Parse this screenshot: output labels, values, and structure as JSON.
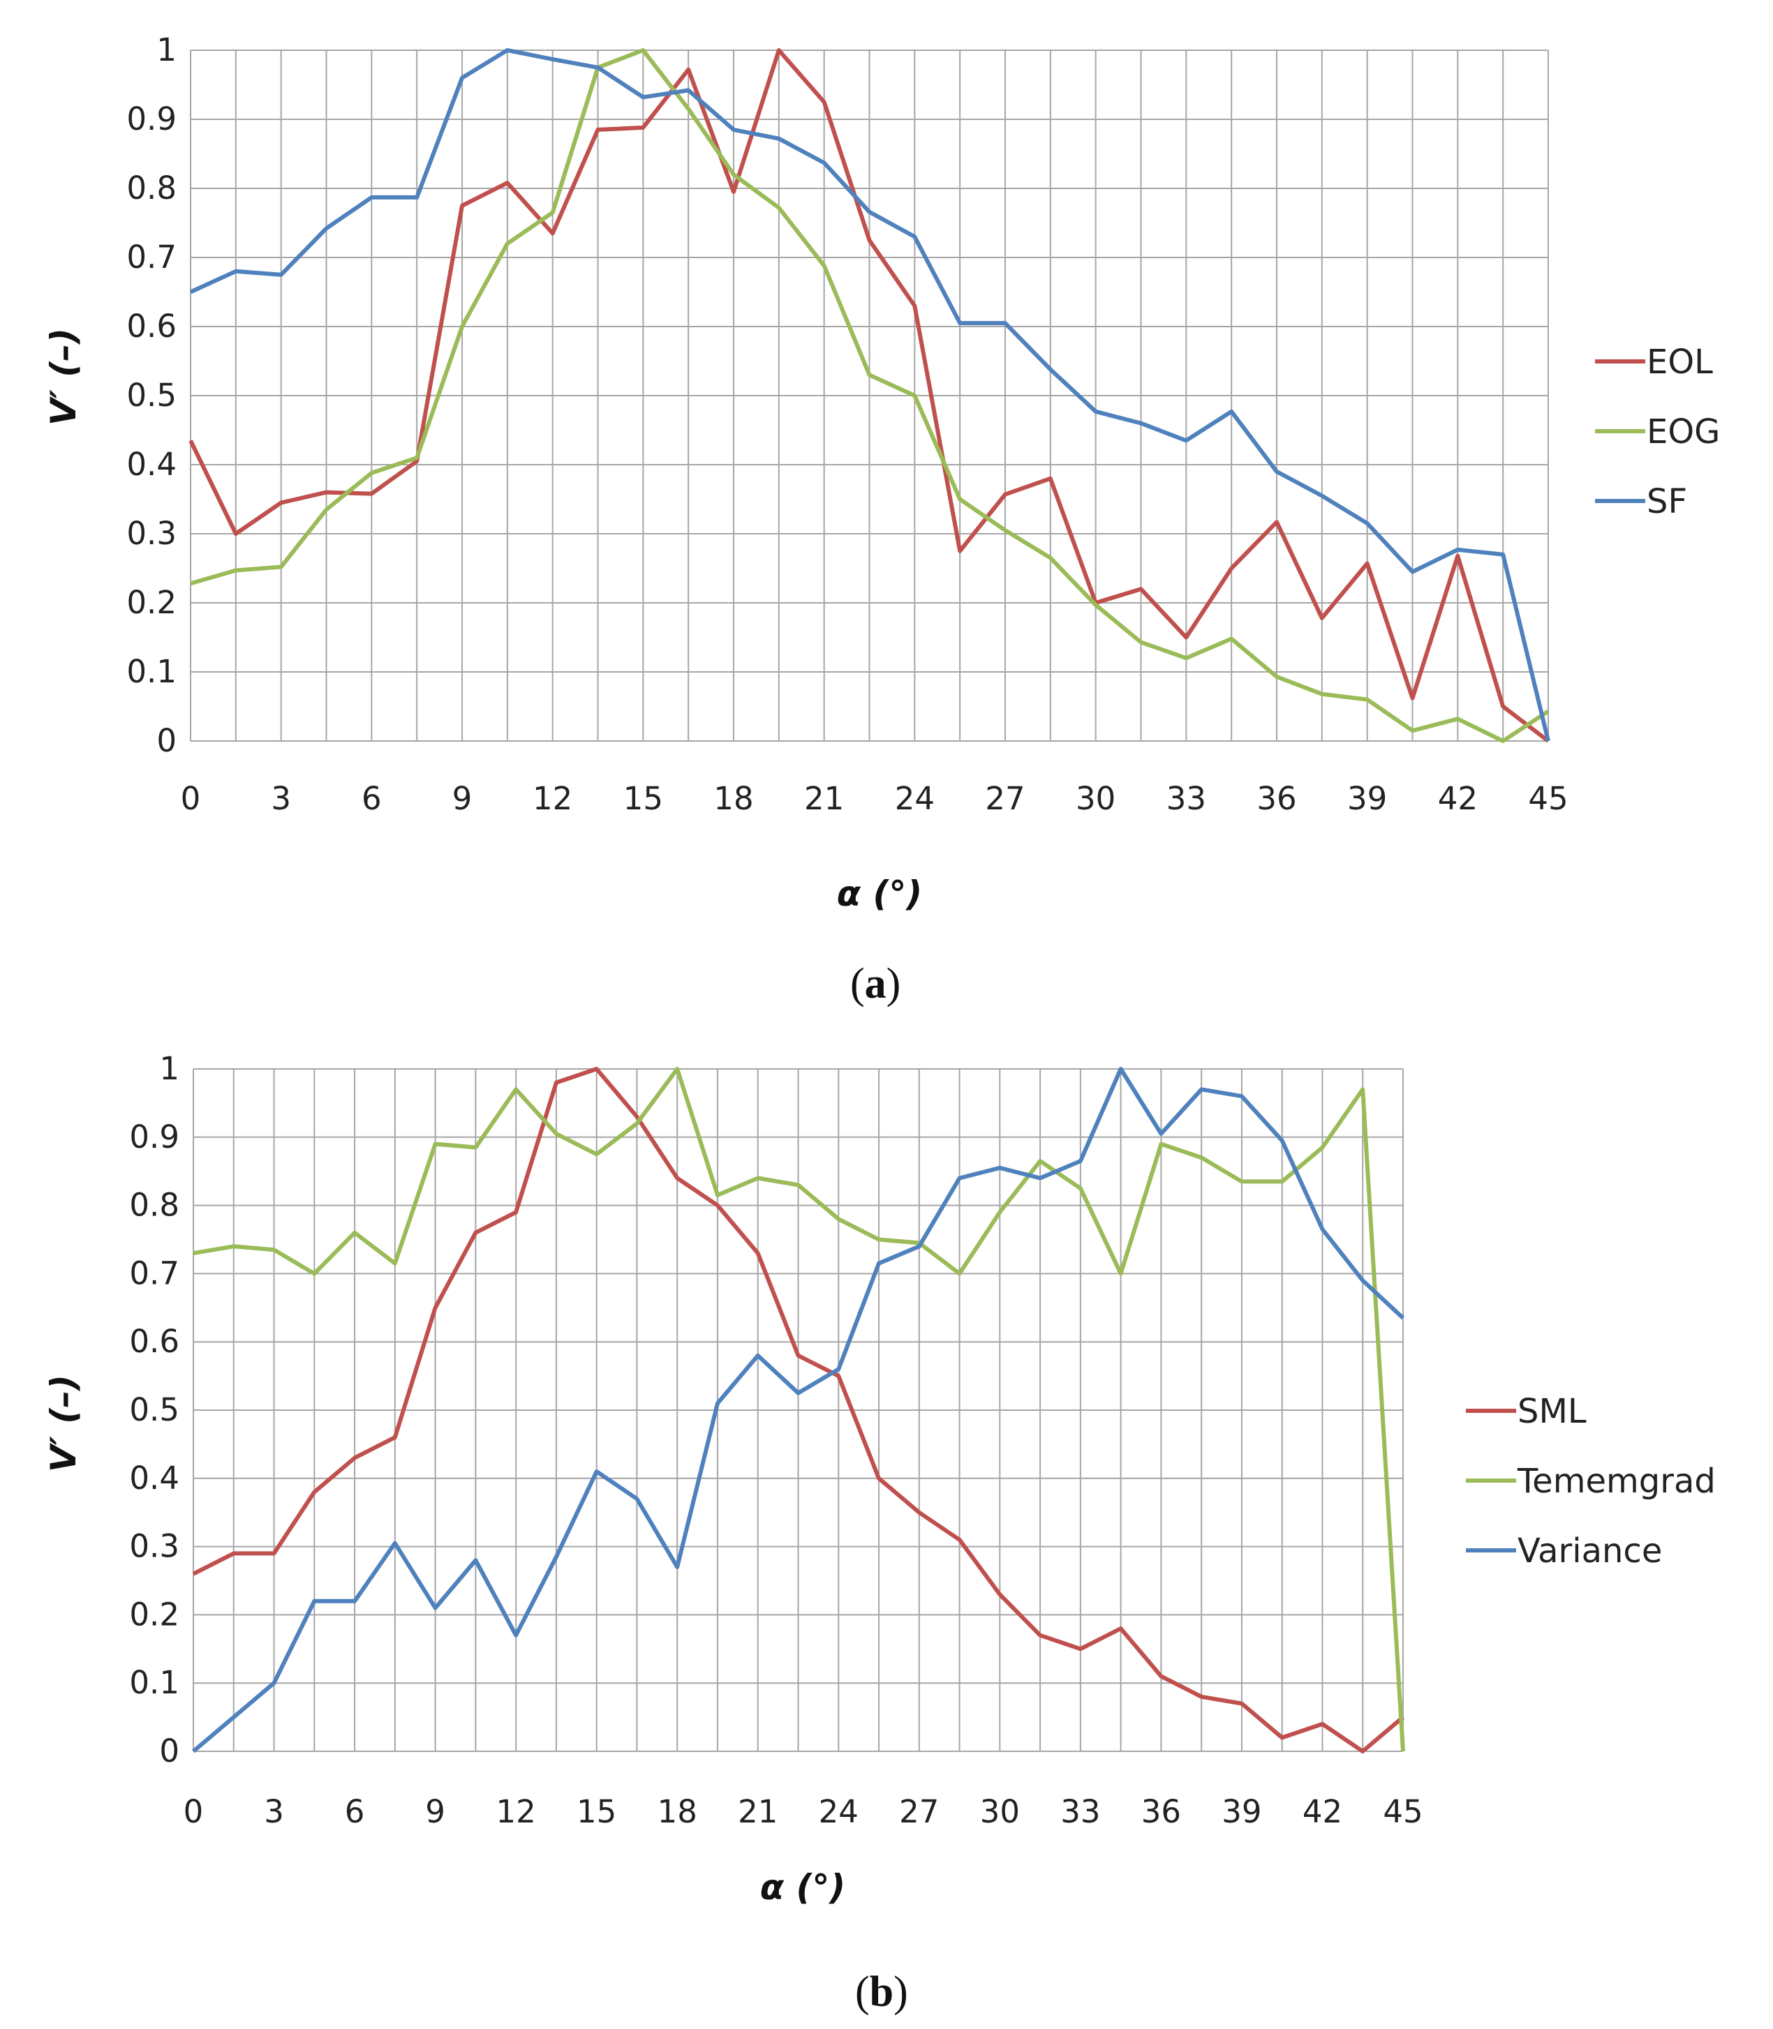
{
  "colors": {
    "red": "#C0504D",
    "green": "#9BBB59",
    "blue": "#4F81BD",
    "grid": "#a6a6a6"
  },
  "chart_data": [
    {
      "type": "line",
      "title": "",
      "xlabel": "α (°)",
      "ylabel": "V′ (–)",
      "caption_letter": "a",
      "xlim": [
        0,
        45
      ],
      "ylim": [
        0,
        1
      ],
      "x_ticks": [
        "0",
        "3",
        "6",
        "9",
        "12",
        "15",
        "18",
        "21",
        "24",
        "27",
        "30",
        "33",
        "36",
        "39",
        "42",
        "45"
      ],
      "y_ticks": [
        "0",
        "0.1",
        "0.2",
        "0.3",
        "0.4",
        "0.5",
        "0.6",
        "0.7",
        "0.8",
        "0.9",
        "1"
      ],
      "legend_position": "right",
      "x": [
        0,
        1.5,
        3,
        4.5,
        6,
        7.5,
        9,
        10.5,
        12,
        13.5,
        15,
        16.5,
        18,
        19.5,
        21,
        22.5,
        24,
        25.5,
        27,
        28.5,
        30,
        31.5,
        33,
        34.5,
        36,
        37.5,
        39,
        40.5,
        42,
        43.5,
        45
      ],
      "series": [
        {
          "name": "EOL",
          "color": "#C0504D",
          "values": [
            0.435,
            0.3,
            0.345,
            0.36,
            0.358,
            0.405,
            0.775,
            0.808,
            0.735,
            0.885,
            0.888,
            0.972,
            0.795,
            1.0,
            0.925,
            0.725,
            0.63,
            0.275,
            0.357,
            0.38,
            0.2,
            0.22,
            0.15,
            0.25,
            0.317,
            0.178,
            0.257,
            0.062,
            0.268,
            0.05,
            0.0
          ]
        },
        {
          "name": "EOG",
          "color": "#9BBB59",
          "values": [
            0.228,
            0.247,
            0.252,
            0.335,
            0.388,
            0.41,
            0.6,
            0.72,
            0.765,
            0.975,
            1.0,
            0.915,
            0.82,
            0.772,
            0.688,
            0.53,
            0.5,
            0.35,
            0.305,
            0.265,
            0.197,
            0.143,
            0.12,
            0.148,
            0.093,
            0.068,
            0.06,
            0.015,
            0.032,
            0.0,
            0.043
          ]
        },
        {
          "name": "SF",
          "color": "#4F81BD",
          "values": [
            0.65,
            0.68,
            0.675,
            0.742,
            0.787,
            0.787,
            0.96,
            1.0,
            0.987,
            0.975,
            0.932,
            0.942,
            0.885,
            0.872,
            0.837,
            0.766,
            0.73,
            0.605,
            0.605,
            0.538,
            0.477,
            0.46,
            0.435,
            0.477,
            0.39,
            0.355,
            0.315,
            0.245,
            0.277,
            0.27,
            0.0
          ]
        }
      ]
    },
    {
      "type": "line",
      "title": "",
      "xlabel": "α (°)",
      "ylabel": "V′ (–)",
      "caption_letter": "b",
      "xlim": [
        0,
        45
      ],
      "ylim": [
        0,
        1
      ],
      "x_ticks": [
        "0",
        "3",
        "6",
        "9",
        "12",
        "15",
        "18",
        "21",
        "24",
        "27",
        "30",
        "33",
        "36",
        "39",
        "42",
        "45"
      ],
      "y_ticks": [
        "0",
        "0.1",
        "0.2",
        "0.3",
        "0.4",
        "0.5",
        "0.6",
        "0.7",
        "0.8",
        "0.9",
        "1"
      ],
      "legend_position": "right",
      "x": [
        0,
        1.5,
        3,
        4.5,
        6,
        7.5,
        9,
        10.5,
        12,
        13.5,
        15,
        16.5,
        18,
        19.5,
        21,
        22.5,
        24,
        25.5,
        27,
        28.5,
        30,
        31.5,
        33,
        34.5,
        36,
        37.5,
        39,
        40.5,
        42,
        43.5,
        45
      ],
      "series": [
        {
          "name": "SML",
          "color": "#C0504D",
          "values": [
            0.26,
            0.29,
            0.29,
            0.38,
            0.43,
            0.46,
            0.65,
            0.76,
            0.79,
            0.98,
            1.0,
            0.93,
            0.84,
            0.8,
            0.73,
            0.58,
            0.55,
            0.4,
            0.35,
            0.31,
            0.23,
            0.17,
            0.15,
            0.18,
            0.11,
            0.08,
            0.07,
            0.02,
            0.04,
            0.0,
            0.05
          ]
        },
        {
          "name": "Tememgrad",
          "color": "#9BBB59",
          "values": [
            0.73,
            0.74,
            0.735,
            0.7,
            0.76,
            0.715,
            0.89,
            0.885,
            0.97,
            0.905,
            0.875,
            0.92,
            1.0,
            0.815,
            0.84,
            0.83,
            0.78,
            0.75,
            0.745,
            0.7,
            0.79,
            0.865,
            0.825,
            0.7,
            0.89,
            0.87,
            0.835,
            0.835,
            0.885,
            0.97,
            0.0
          ]
        },
        {
          "name": "Variance",
          "color": "#4F81BD",
          "values": [
            0.0,
            0.05,
            0.1,
            0.22,
            0.22,
            0.305,
            0.21,
            0.28,
            0.17,
            0.285,
            0.41,
            0.37,
            0.27,
            0.51,
            0.58,
            0.525,
            0.56,
            0.715,
            0.74,
            0.84,
            0.855,
            0.84,
            0.865,
            1.0,
            0.905,
            0.97,
            0.96,
            0.895,
            0.765,
            0.69,
            0.635
          ]
        }
      ]
    }
  ]
}
